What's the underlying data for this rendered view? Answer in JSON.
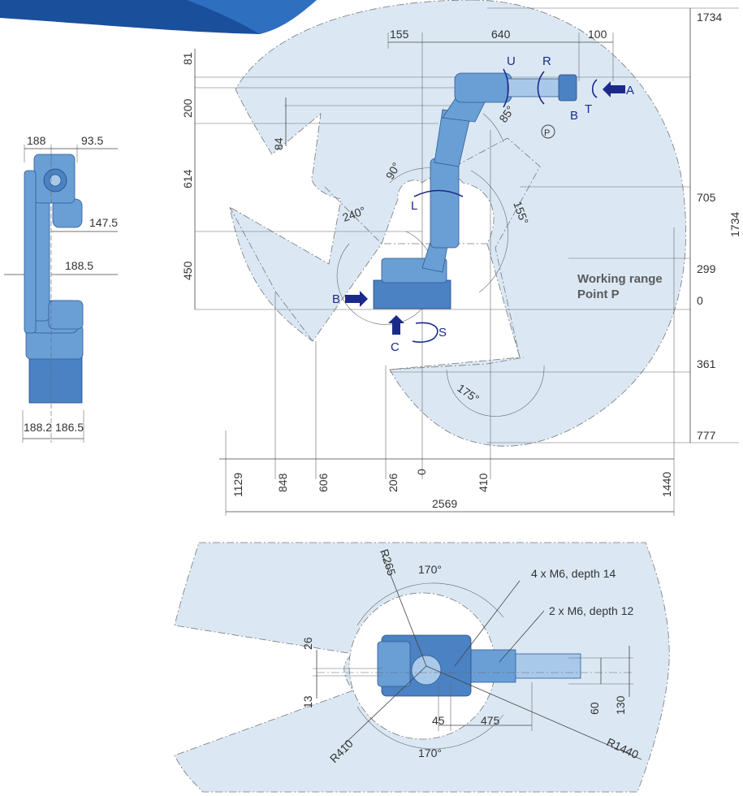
{
  "header_band": {
    "color": "#1a4f9c"
  },
  "colors": {
    "range_fill": "#dbe8f4",
    "robot": "#6a9fd6",
    "axis_label": "#1b2a8a"
  },
  "side_view": {
    "dims": {
      "top_left": "188",
      "top_right": "93.5",
      "mid1": "147.5",
      "mid2": "188.5",
      "bottom_left": "188.2",
      "bottom_right": "186.5"
    }
  },
  "front_view": {
    "top_dims": {
      "d155": "155",
      "d640": "640",
      "d100": "100"
    },
    "left_dims": {
      "d81": "81",
      "d200": "200",
      "d84": "84",
      "d614": "614",
      "d450": "450"
    },
    "right_dims": {
      "top": "1734",
      "d705": "705",
      "d299": "299",
      "d0": "0",
      "d361": "361",
      "d777": "777",
      "vertical": "1734"
    },
    "bottom_dims": {
      "d1129": "1129",
      "d848": "848",
      "d606": "606",
      "d206": "206",
      "d0": "0",
      "d410": "410",
      "d1440": "1440",
      "total": "2569"
    },
    "angles": {
      "a85": "85°",
      "a90": "90°",
      "a240": "240°",
      "a155": "155°",
      "a175": "175°"
    },
    "axis_labels": {
      "U": "U",
      "R": "R",
      "A": "A",
      "B_top": "B",
      "T": "T",
      "P": "P",
      "L": "L",
      "B_left": "B",
      "S": "S",
      "C": "C"
    },
    "working_range_line1": "Working range",
    "working_range_line2": "Point P"
  },
  "top_view": {
    "r265": "R265",
    "a170_top": "170°",
    "a170_bottom": "170°",
    "holes1": "4 x M6, depth 14",
    "holes2": "2 x M6, depth 12",
    "d26": "26",
    "d13": "13",
    "d45": "45",
    "d475": "475",
    "d60": "60",
    "d130": "130",
    "r410": "R410",
    "r1440": "R1440"
  }
}
